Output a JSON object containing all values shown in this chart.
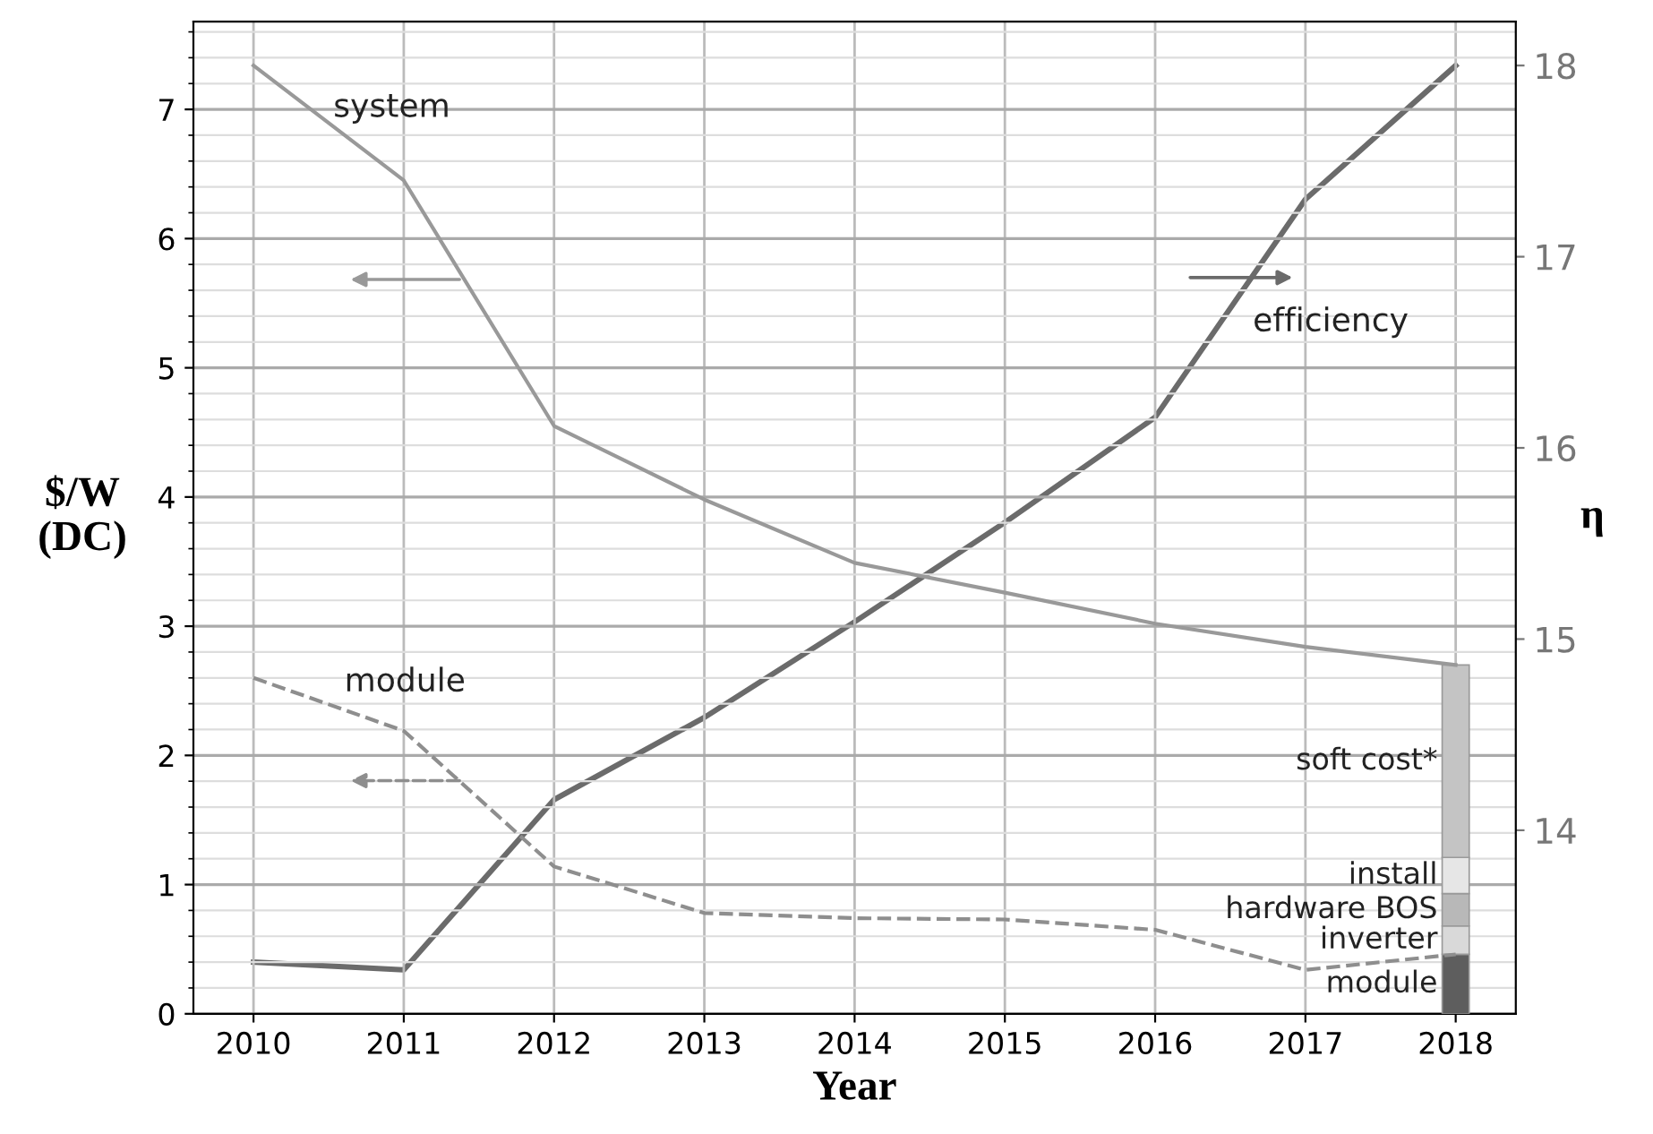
{
  "chart_data": {
    "type": "line",
    "xlabel": "Year",
    "ylabel": "$/W\n(DC)",
    "y2label": "η",
    "x": [
      2010,
      2011,
      2012,
      2013,
      2014,
      2015,
      2016,
      2017,
      2018
    ],
    "xlim": [
      2009.6,
      2018.4
    ],
    "xticks": [
      2010,
      2011,
      2012,
      2013,
      2014,
      2015,
      2016,
      2017,
      2018
    ],
    "ylim": [
      0,
      7.68
    ],
    "yticks": [
      0,
      1,
      2,
      3,
      4,
      5,
      6,
      7
    ],
    "y2lim": [
      13.04,
      18.23
    ],
    "y2ticks": [
      14,
      15,
      16,
      17,
      18
    ],
    "grid": true,
    "stacked": true,
    "series": [
      {
        "name": "system",
        "color": "#999999",
        "line_style": "solid",
        "values": [
          7.34,
          6.45,
          4.55,
          3.98,
          3.49,
          3.26,
          3.02,
          2.84,
          2.7
        ]
      },
      {
        "name": "module",
        "color": "#8e8e8e",
        "line_style": "dashed",
        "values": [
          2.6,
          2.19,
          1.14,
          0.78,
          0.74,
          0.73,
          0.65,
          0.34,
          0.46
        ]
      },
      {
        "name": "efficiency",
        "axis": "y2",
        "color": "#6b6b6b",
        "line_style": "solid",
        "values": [
          13.31,
          13.27,
          14.16,
          14.59,
          15.09,
          15.61,
          16.16,
          17.3,
          18.0
        ]
      },
      {
        "name": "module",
        "type": "bar",
        "color": "#5e5e5e",
        "values": [
          null,
          null,
          null,
          null,
          null,
          null,
          null,
          null,
          0.46
        ]
      },
      {
        "name": "inverter",
        "type": "bar",
        "color": "#d9d9d9",
        "values": [
          null,
          null,
          null,
          null,
          null,
          null,
          null,
          null,
          0.22
        ]
      },
      {
        "name": "hardware BOS",
        "type": "bar",
        "color": "#b8b8b8",
        "values": [
          null,
          null,
          null,
          null,
          null,
          null,
          null,
          null,
          0.25
        ]
      },
      {
        "name": "install",
        "type": "bar",
        "color": "#e6e6e6",
        "values": [
          null,
          null,
          null,
          null,
          null,
          null,
          null,
          null,
          0.28
        ]
      },
      {
        "name": "soft cost*",
        "type": "bar",
        "color": "#c4c4c4",
        "values": [
          null,
          null,
          null,
          null,
          null,
          null,
          null,
          null,
          1.49
        ]
      }
    ]
  }
}
